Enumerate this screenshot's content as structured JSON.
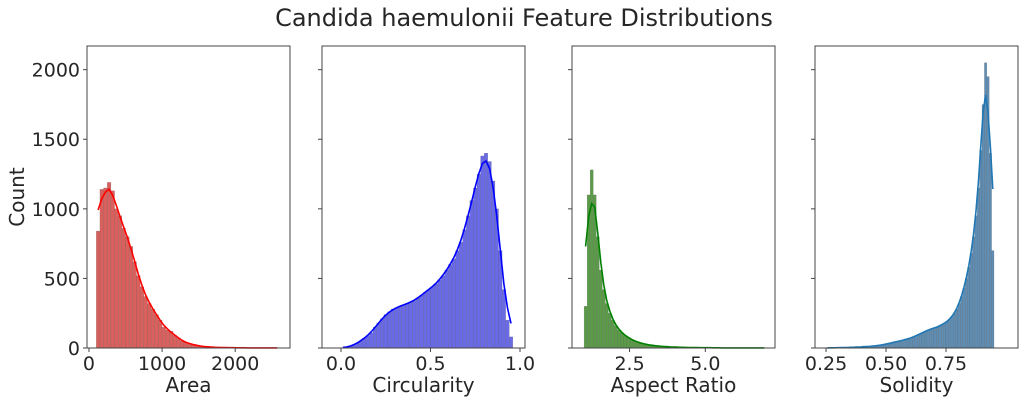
{
  "chart_data": {
    "title": "Candida haemulonii Feature Distributions",
    "ylabel": "Count",
    "ylim": [
      0,
      2170
    ],
    "yticks": [
      0,
      500,
      1000,
      1500,
      2000
    ],
    "yticklabels": [
      "0",
      "500",
      "1000",
      "1500",
      "2000"
    ],
    "grid": false,
    "panels": [
      {
        "type": "bar",
        "xlabel": "Area",
        "bar_color": "#d9605c",
        "line_color": "#ff0000",
        "xlim": [
          -27,
          2750
        ],
        "xticks": [
          0,
          1000,
          2000
        ],
        "xticklabels": [
          "0",
          "1000",
          "2000"
        ],
        "bin_start": 100,
        "bin_width": 50,
        "counts": [
          840,
          1140,
          1150,
          1190,
          1130,
          1000,
          950,
          860,
          800,
          730,
          620,
          520,
          440,
          370,
          320,
          280,
          240,
          200,
          150,
          130,
          120,
          90,
          70,
          50,
          40,
          30,
          25,
          18,
          14,
          10,
          8,
          6,
          5,
          4,
          3,
          3,
          2,
          2,
          2,
          1,
          1,
          1,
          1,
          1,
          1,
          1,
          1,
          1,
          1,
          1
        ]
      },
      {
        "type": "bar",
        "xlabel": "Circularity",
        "bar_color": "#6a6ae6",
        "line_color": "#0000ff",
        "xlim": [
          -0.106,
          1.028
        ],
        "xticks": [
          0.0,
          0.5,
          1.0
        ],
        "xticklabels": [
          "0.0",
          "0.5",
          "1.0"
        ],
        "bin_start": 0.0,
        "bin_width": 0.02,
        "counts": [
          2,
          5,
          10,
          20,
          35,
          50,
          70,
          90,
          110,
          150,
          180,
          210,
          240,
          260,
          280,
          290,
          300,
          310,
          320,
          330,
          340,
          360,
          380,
          400,
          420,
          440,
          460,
          490,
          520,
          560,
          600,
          640,
          700,
          760,
          850,
          950,
          1060,
          1150,
          1250,
          1380,
          1400,
          1340,
          1200,
          1000,
          700,
          420,
          200,
          80
        ]
      },
      {
        "type": "bar",
        "xlabel": "Aspect Ratio",
        "bar_color": "#5a9a48",
        "line_color": "#008000",
        "xlim": [
          0.6,
          7.3
        ],
        "xticks": [
          2.5,
          5.0
        ],
        "xticklabels": [
          "2.5",
          "5.0"
        ],
        "bin_start": 1.0,
        "bin_width": 0.1,
        "counts": [
          300,
          1100,
          1280,
          1100,
          800,
          560,
          420,
          320,
          250,
          200,
          160,
          130,
          110,
          90,
          75,
          62,
          52,
          44,
          37,
          31,
          26,
          22,
          19,
          16,
          14,
          12,
          10,
          9,
          8,
          7,
          6,
          5,
          5,
          4,
          4,
          3,
          3,
          3,
          2,
          2,
          2,
          2,
          2,
          1,
          1,
          1,
          1,
          1,
          1,
          1,
          1,
          1,
          1,
          1,
          1,
          1,
          1,
          1,
          1,
          1
        ]
      },
      {
        "type": "bar",
        "xlabel": "Solidity",
        "bar_color": "#5f8db3",
        "line_color": "#1f77b4",
        "xlim": [
          0.204,
          1.05
        ],
        "xticks": [
          0.25,
          0.5,
          0.75
        ],
        "xticklabels": [
          "0.25",
          "0.50",
          "0.75"
        ],
        "bin_start": 0.25,
        "bin_width": 0.01,
        "counts": [
          1,
          1,
          1,
          2,
          2,
          2,
          3,
          3,
          4,
          4,
          5,
          5,
          6,
          7,
          8,
          9,
          10,
          11,
          12,
          14,
          16,
          18,
          20,
          23,
          26,
          30,
          34,
          38,
          42,
          46,
          50,
          54,
          58,
          62,
          68,
          74,
          80,
          88,
          96,
          104,
          112,
          120,
          130,
          136,
          140,
          146,
          152,
          160,
          170,
          180,
          190,
          205,
          225,
          250,
          280,
          320,
          370,
          430,
          500,
          580,
          680,
          800,
          950,
          1150,
          1420,
          1750,
          2050,
          1950,
          1400,
          700
        ]
      }
    ]
  }
}
